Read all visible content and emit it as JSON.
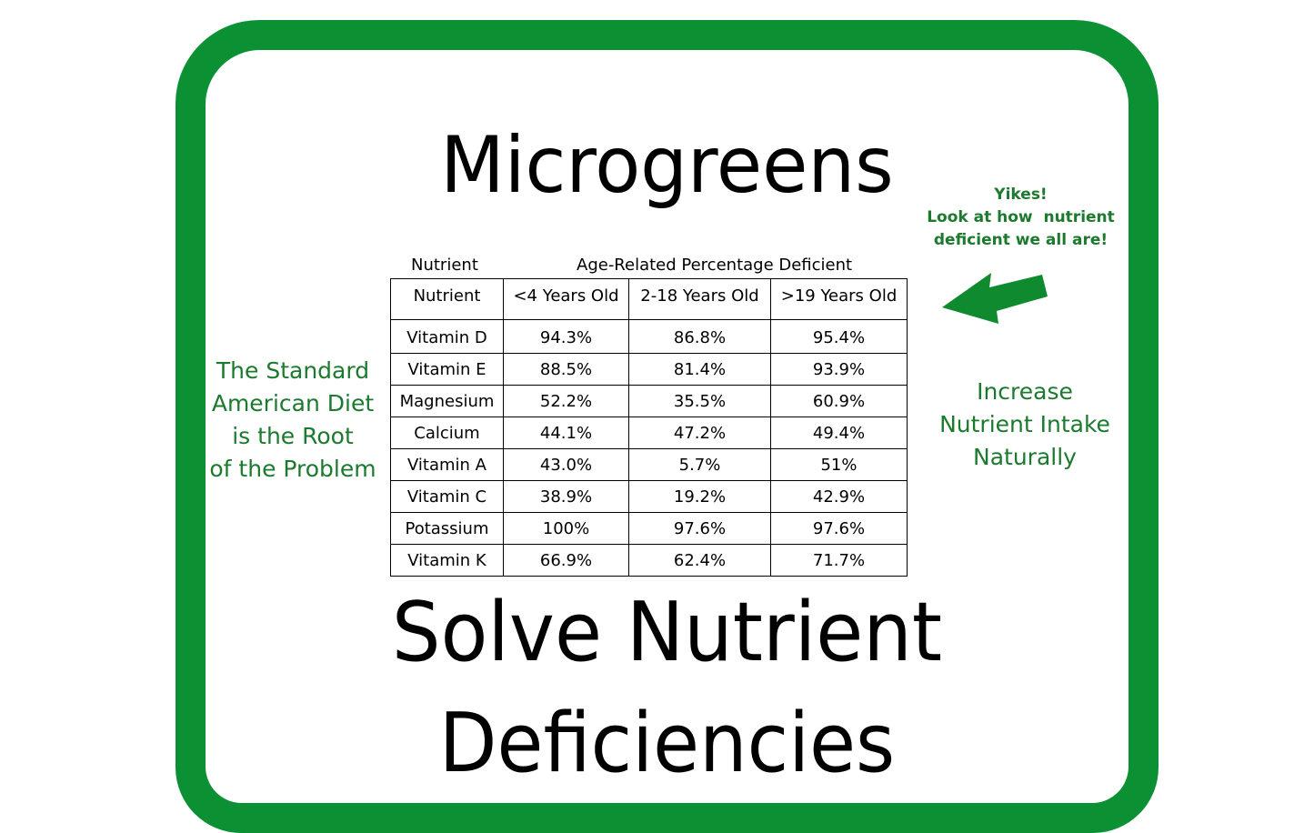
{
  "title": "Microgreens",
  "bottom_text": {
    "line1": "Solve Nutrient",
    "line2": "Deficiencies"
  },
  "left_note": [
    "The Standard",
    "American Diet",
    "is the Root",
    "of the Problem"
  ],
  "right_note": [
    "Increase",
    "Nutrient Intake",
    "Naturally"
  ],
  "callout": [
    "Yikes!",
    "Look at how  nutrient",
    "deficient we all are!"
  ],
  "table": {
    "caption_left": "Nutrient",
    "caption_right": "Age-Related Percentage Deficient",
    "headers": [
      "Nutrient",
      "<4 Years Old",
      "2-18 Years Old",
      ">19 Years Old"
    ],
    "rows": [
      [
        "Vitamin D",
        "94.3%",
        "86.8%",
        "95.4%"
      ],
      [
        "Vitamin E",
        "88.5%",
        "81.4%",
        "93.9%"
      ],
      [
        "Magnesium",
        "52.2%",
        "35.5%",
        "60.9%"
      ],
      [
        "Calcium",
        "44.1%",
        "47.2%",
        "49.4%"
      ],
      [
        "Vitamin A",
        "43.0%",
        "5.7%",
        "51%"
      ],
      [
        "Vitamin C",
        "38.9%",
        "19.2%",
        "42.9%"
      ],
      [
        "Potassium",
        "100%",
        "97.6%",
        "97.6%"
      ],
      [
        "Vitamin K",
        "66.9%",
        "62.4%",
        "71.7%"
      ]
    ]
  },
  "colors": {
    "frame": "#0b9134",
    "note_text": "#1c7a2e",
    "arrow": "#0f8a2f"
  },
  "icons": {
    "callout_arrow": "left-arrow-icon"
  }
}
